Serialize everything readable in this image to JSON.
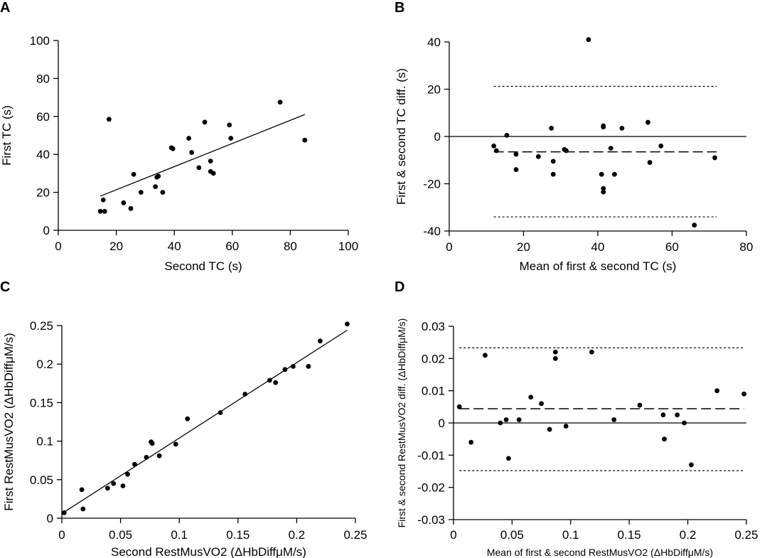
{
  "chart_data": [
    {
      "panel": "A",
      "type": "scatter",
      "xlabel": "Second TC (s)",
      "ylabel": "First TC (s)",
      "xlim": [
        0,
        100
      ],
      "ylim": [
        0,
        100
      ],
      "xticks": [
        0,
        20,
        40,
        60,
        80,
        100
      ],
      "yticks": [
        0,
        20,
        40,
        60,
        80,
        100
      ],
      "points": [
        [
          14.5,
          10
        ],
        [
          15.5,
          16
        ],
        [
          16,
          10
        ],
        [
          17.5,
          58.5
        ],
        [
          22.5,
          14.5
        ],
        [
          25,
          11.5
        ],
        [
          26,
          29.5
        ],
        [
          28.5,
          20
        ],
        [
          33.5,
          23
        ],
        [
          34,
          28
        ],
        [
          34.5,
          28.5
        ],
        [
          36,
          20
        ],
        [
          39,
          43.5
        ],
        [
          39.5,
          43
        ],
        [
          45,
          48.5
        ],
        [
          46,
          41
        ],
        [
          48.5,
          33
        ],
        [
          50.5,
          57
        ],
        [
          52.5,
          31
        ],
        [
          52.5,
          36.5
        ],
        [
          53.5,
          30
        ],
        [
          59,
          55.5
        ],
        [
          59.5,
          48.5
        ],
        [
          76.5,
          67.5
        ],
        [
          85,
          47.5
        ]
      ],
      "fit_line": [
        [
          14.5,
          18
        ],
        [
          85,
          61
        ]
      ]
    },
    {
      "panel": "B",
      "type": "scatter",
      "xlabel": "Mean of first & second TC (s)",
      "ylabel": "First & second TC diff. (s)",
      "xlim": [
        0,
        80
      ],
      "ylim": [
        -40,
        40
      ],
      "xticks": [
        0,
        20,
        40,
        60,
        80
      ],
      "yticks": [
        -40,
        -20,
        0,
        20,
        40
      ],
      "points": [
        [
          12,
          -4
        ],
        [
          12.7,
          -6
        ],
        [
          15.5,
          0.5
        ],
        [
          18,
          -7.5
        ],
        [
          18,
          -14
        ],
        [
          24,
          -8.5
        ],
        [
          27.5,
          3.5
        ],
        [
          28,
          -10.5
        ],
        [
          28,
          -16
        ],
        [
          31,
          -5.5
        ],
        [
          31.5,
          -6
        ],
        [
          37.5,
          41
        ],
        [
          41,
          -16
        ],
        [
          41.5,
          4
        ],
        [
          41.5,
          4.5
        ],
        [
          41.5,
          -22
        ],
        [
          41.5,
          -23.5
        ],
        [
          43.5,
          -5
        ],
        [
          44.5,
          -16
        ],
        [
          46.5,
          3.5
        ],
        [
          53.5,
          6
        ],
        [
          54,
          -11
        ],
        [
          57,
          -4
        ],
        [
          66,
          -37.5
        ],
        [
          71.5,
          -9
        ]
      ],
      "mean_line": -6.5,
      "loa_upper": 21.2,
      "loa_lower": -34,
      "line_x_range": [
        12,
        72
      ]
    },
    {
      "panel": "C",
      "type": "scatter",
      "xlabel": "Second RestMusVO2 (ΔHbDiffμM/s)",
      "ylabel": "First RestMusVO2 (ΔHbDiffμM/s)",
      "xlim": [
        0,
        0.25
      ],
      "ylim": [
        0,
        0.25
      ],
      "xticks": [
        0,
        0.05,
        0.1,
        0.15,
        0.2,
        0.25
      ],
      "yticks": [
        0,
        0.05,
        0.1,
        0.15,
        0.2,
        0.25
      ],
      "points": [
        [
          0.002,
          0.007
        ],
        [
          0.017,
          0.037
        ],
        [
          0.018,
          0.012
        ],
        [
          0.039,
          0.039
        ],
        [
          0.044,
          0.045
        ],
        [
          0.052,
          0.042
        ],
        [
          0.056,
          0.057
        ],
        [
          0.062,
          0.07
        ],
        [
          0.072,
          0.079
        ],
        [
          0.076,
          0.099
        ],
        [
          0.077,
          0.097
        ],
        [
          0.083,
          0.081
        ],
        [
          0.097,
          0.096
        ],
        [
          0.107,
          0.129
        ],
        [
          0.135,
          0.137
        ],
        [
          0.156,
          0.161
        ],
        [
          0.177,
          0.179
        ],
        [
          0.182,
          0.176
        ],
        [
          0.19,
          0.193
        ],
        [
          0.197,
          0.197
        ],
        [
          0.21,
          0.197
        ],
        [
          0.22,
          0.23
        ],
        [
          0.243,
          0.252
        ]
      ],
      "fit_line": [
        [
          0.001,
          0.007
        ],
        [
          0.243,
          0.244
        ]
      ]
    },
    {
      "panel": "D",
      "type": "scatter",
      "xlabel": "Mean of first & second RestMusVO2 (ΔHbDiffμM/s)",
      "ylabel": "First & second RestMusVO2 diff. (ΔHbDiffμM/s)",
      "xlim": [
        0,
        0.25
      ],
      "ylim": [
        -0.03,
        0.03
      ],
      "xticks": [
        0,
        0.05,
        0.1,
        0.15,
        0.2,
        0.25
      ],
      "yticks": [
        -0.03,
        -0.02,
        -0.01,
        0,
        0.01,
        0.02,
        0.03
      ],
      "points": [
        [
          0.005,
          0.005
        ],
        [
          0.015,
          -0.006
        ],
        [
          0.027,
          0.021
        ],
        [
          0.04,
          0
        ],
        [
          0.045,
          0.001
        ],
        [
          0.047,
          -0.011
        ],
        [
          0.056,
          0.001
        ],
        [
          0.066,
          0.008
        ],
        [
          0.075,
          0.006
        ],
        [
          0.082,
          -0.002
        ],
        [
          0.087,
          0.022
        ],
        [
          0.087,
          0.02
        ],
        [
          0.096,
          -0.001
        ],
        [
          0.118,
          0.022
        ],
        [
          0.137,
          0.001
        ],
        [
          0.159,
          0.0055
        ],
        [
          0.179,
          0.0025
        ],
        [
          0.18,
          -0.005
        ],
        [
          0.191,
          0.0025
        ],
        [
          0.197,
          0
        ],
        [
          0.203,
          -0.013
        ],
        [
          0.225,
          0.01
        ],
        [
          0.248,
          0.009
        ]
      ],
      "mean_line": 0.0044,
      "loa_upper": 0.0233,
      "loa_lower": -0.0148,
      "line_x_range": [
        0.005,
        0.248
      ]
    }
  ]
}
